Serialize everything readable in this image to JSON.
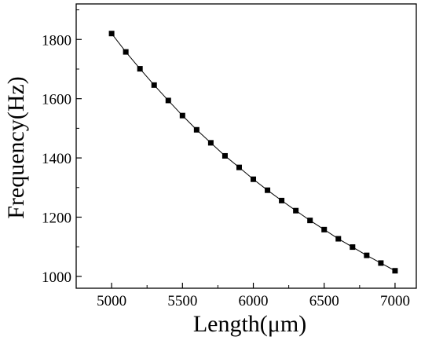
{
  "chart_data": {
    "type": "line",
    "title": "",
    "xlabel": "Length(μm)",
    "ylabel": "Frequency(Hz)",
    "xlim": [
      4750,
      7150
    ],
    "ylim": [
      960,
      1920
    ],
    "x_ticks": [
      5000,
      5500,
      6000,
      6500,
      7000
    ],
    "y_ticks": [
      1000,
      1200,
      1400,
      1600,
      1800
    ],
    "x_minor_step": 250,
    "y_minor_step": 100,
    "grid": false,
    "legend": "none",
    "series": [
      {
        "marker": "square",
        "color": "#000000",
        "x": [
          5000,
          5100,
          5200,
          5300,
          5400,
          5500,
          5600,
          5700,
          5800,
          5900,
          6000,
          6100,
          6200,
          6300,
          6400,
          6500,
          6600,
          6700,
          6800,
          6900,
          7000
        ],
        "y": [
          1820,
          1758,
          1701,
          1646,
          1594,
          1543,
          1495,
          1451,
          1407,
          1368,
          1328,
          1291,
          1256,
          1222,
          1189,
          1158,
          1127,
          1099,
          1071,
          1045,
          1019
        ]
      }
    ]
  }
}
